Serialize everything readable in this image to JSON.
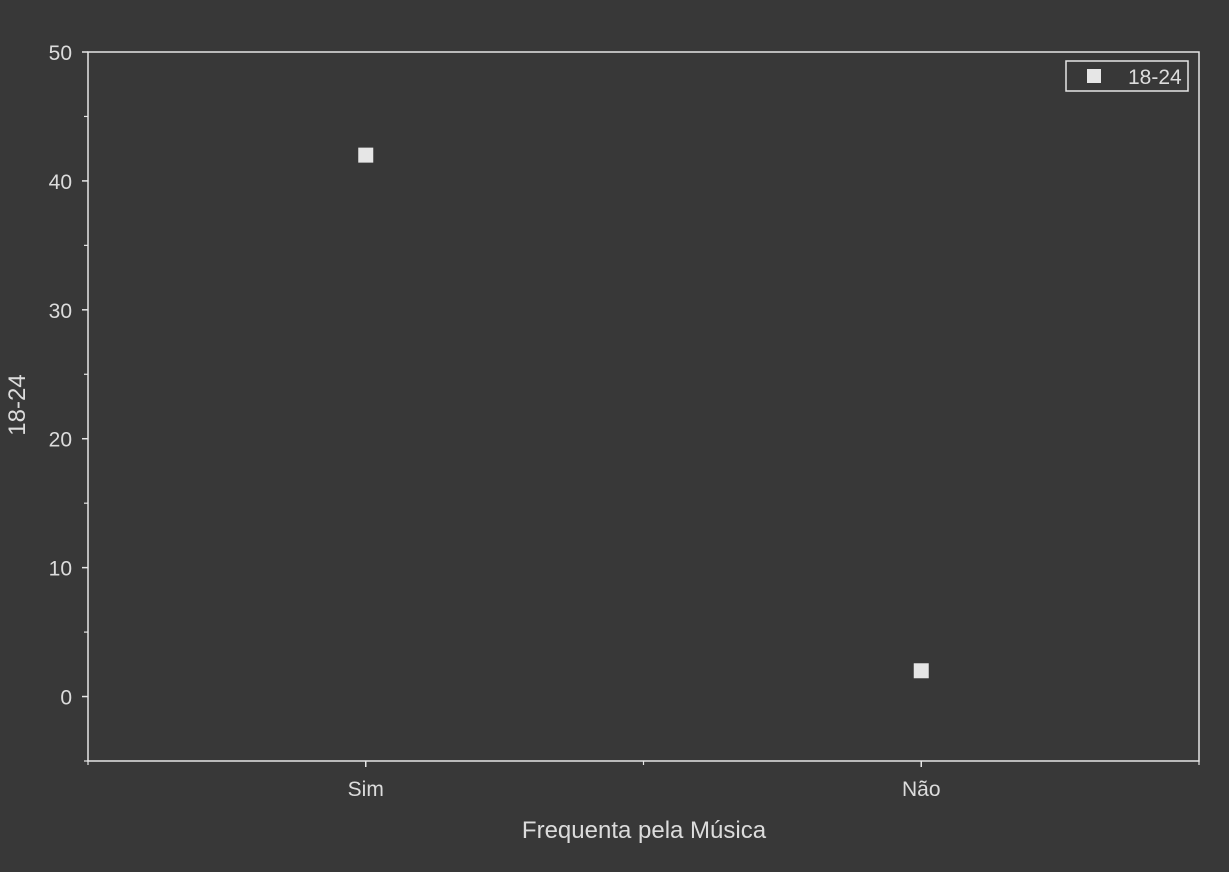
{
  "chart_data": {
    "type": "scatter",
    "categories": [
      "Sim",
      "Não"
    ],
    "series": [
      {
        "name": "18-24",
        "values": [
          42,
          2
        ]
      }
    ],
    "xlabel": "Frequenta pela Música",
    "ylabel": "18-24",
    "ylim": [
      -5,
      50
    ],
    "yticks": [
      0,
      10,
      20,
      30,
      40,
      50
    ],
    "grid": false,
    "legend": "top-right"
  },
  "colors": {
    "background": "#383838",
    "axis": "#e6e6e6",
    "text": "#dcdcdc",
    "marker": "#e6e6e6"
  }
}
